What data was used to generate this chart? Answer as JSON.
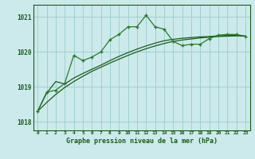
{
  "title": "Graphe pression niveau de la mer (hPa)",
  "background_color": "#cceaeb",
  "grid_color": "#99cccc",
  "line_color_dark": "#1a5c1a",
  "line_color_mid": "#2a7a2a",
  "xlim": [
    -0.5,
    23.5
  ],
  "ylim": [
    1017.75,
    1021.35
  ],
  "yticks": [
    1018,
    1019,
    1020,
    1021
  ],
  "xticks": [
    0,
    1,
    2,
    3,
    4,
    5,
    6,
    7,
    8,
    9,
    10,
    11,
    12,
    13,
    14,
    15,
    16,
    17,
    18,
    19,
    20,
    21,
    22,
    23
  ],
  "hours": [
    0,
    1,
    2,
    3,
    4,
    5,
    6,
    7,
    8,
    9,
    10,
    11,
    12,
    13,
    14,
    15,
    16,
    17,
    18,
    19,
    20,
    21,
    22,
    23
  ],
  "pressure_wiggly": [
    1018.3,
    1018.85,
    1018.9,
    1019.1,
    1019.9,
    1019.75,
    1019.85,
    1020.0,
    1020.35,
    1020.5,
    1020.72,
    1020.72,
    1021.05,
    1020.72,
    1020.65,
    1020.3,
    1020.18,
    1020.22,
    1020.22,
    1020.38,
    1020.48,
    1020.5,
    1020.5,
    1020.45
  ],
  "pressure_smooth1": [
    1018.3,
    1018.82,
    1019.15,
    1019.08,
    1019.25,
    1019.38,
    1019.5,
    1019.62,
    1019.75,
    1019.87,
    1019.98,
    1020.08,
    1020.17,
    1020.25,
    1020.32,
    1020.36,
    1020.39,
    1020.41,
    1020.43,
    1020.44,
    1020.46,
    1020.47,
    1020.47,
    1020.45
  ],
  "pressure_smooth2": [
    1018.3,
    1018.55,
    1018.78,
    1018.98,
    1019.15,
    1019.3,
    1019.44,
    1019.56,
    1019.68,
    1019.79,
    1019.9,
    1020.0,
    1020.09,
    1020.17,
    1020.24,
    1020.3,
    1020.34,
    1020.37,
    1020.4,
    1020.42,
    1020.44,
    1020.45,
    1020.46,
    1020.45
  ]
}
